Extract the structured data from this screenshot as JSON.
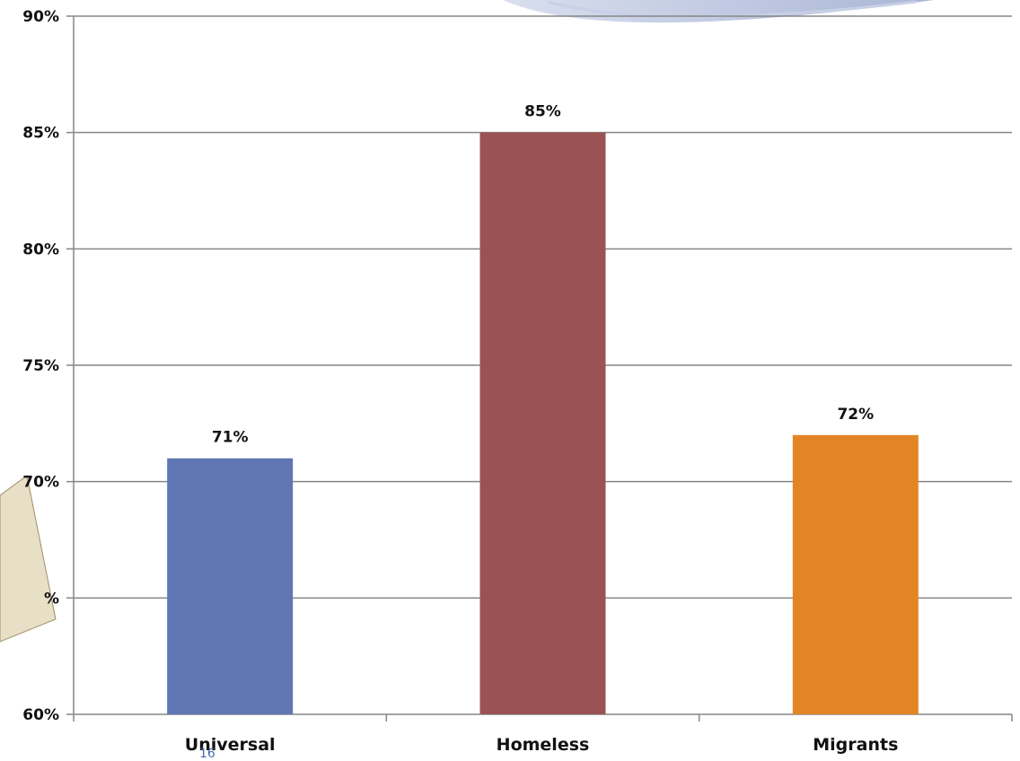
{
  "chart_data": {
    "type": "bar",
    "title": "",
    "xlabel": "",
    "ylabel": "",
    "categories": [
      "Universal",
      "Homeless",
      "Migrants"
    ],
    "values": [
      71,
      85,
      72
    ],
    "data_labels": [
      "71%",
      "85%",
      "72%"
    ],
    "colors": [
      "#6077B4",
      "#9B5253",
      "#E38524"
    ],
    "ylim": [
      60,
      90
    ],
    "yticks": [
      60,
      65,
      70,
      75,
      80,
      85,
      90
    ],
    "ytick_labels": [
      "60%",
      "%",
      "70%",
      "75%",
      "80%",
      "85%",
      "90%"
    ],
    "grid": true,
    "legend": "none"
  },
  "slide_number": "16",
  "colors": {
    "axis": "#868686",
    "grid": "#868686",
    "slide_number": "#4a6aa5"
  }
}
